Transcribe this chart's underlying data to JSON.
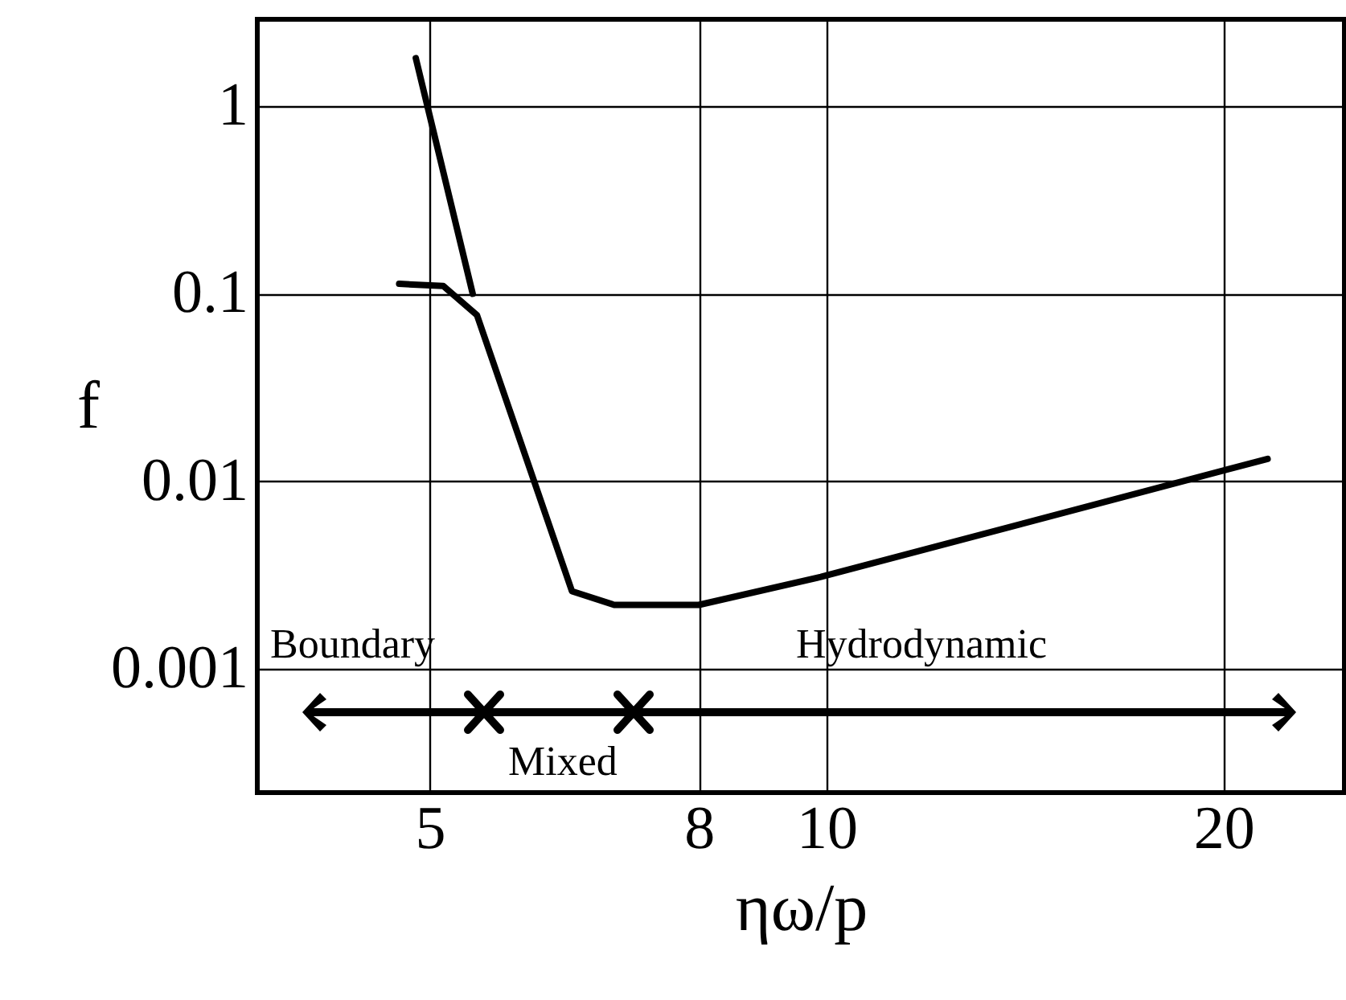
{
  "chart_data": {
    "type": "line",
    "xlabel": "ηω/p",
    "ylabel": "f",
    "log": "xy",
    "xlim": [
      3.7,
      24.7
    ],
    "ylim": [
      0.00022,
      2.9
    ],
    "xticks": [
      5,
      8,
      10,
      20
    ],
    "yticks": [
      0.001,
      0.01,
      0.1,
      1
    ],
    "grid": true,
    "marker": "none",
    "line_style": "solid",
    "series": [
      {
        "color": "#000000",
        "x": [
          4.88,
          5.39
        ],
        "values": [
          1.8,
          0.1
        ]
      },
      {
        "color": "#000000",
        "x": [
          4.74,
          5.12,
          5.43,
          6.41,
          6.9,
          8,
          9.9,
          21.6
        ],
        "values": [
          0.113,
          0.11,
          0.077,
          0.0026,
          0.0022,
          0.0022,
          0.0031,
          0.0132
        ]
      }
    ],
    "annotations": [
      "Boundary",
      "Mixed",
      "Hydrodynamic"
    ]
  }
}
